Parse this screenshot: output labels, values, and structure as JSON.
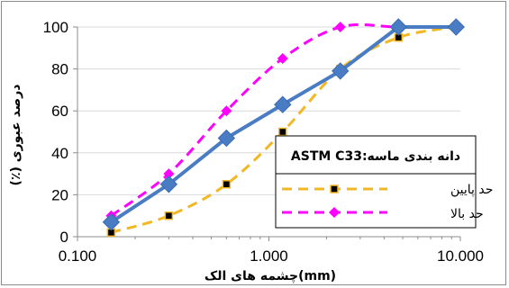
{
  "chart_data": {
    "type": "line",
    "x_scale": "log",
    "xlim": [
      0.1,
      10
    ],
    "ylim": [
      0,
      100
    ],
    "x_ticks": [
      0.1,
      1,
      10
    ],
    "x_tick_labels": [
      "0.100",
      "1.000",
      "10.000"
    ],
    "y_ticks": [
      0,
      20,
      40,
      60,
      80,
      100
    ],
    "y_tick_labels": [
      "0",
      "20",
      "40",
      "60",
      "80",
      "100"
    ],
    "xlabel": "چشمه های الک(mm)",
    "ylabel": "درصد عبوری (٪)",
    "callout": "دانه بندی ماسه:ASTM C33",
    "grid": "horizontal",
    "legend_position": "bottom-right",
    "series": [
      {
        "name": "حد پایین",
        "style": "dashed",
        "marker": "square",
        "color": "#f2b824",
        "x": [
          0.15,
          0.3,
          0.6,
          1.18,
          2.36,
          4.75,
          9.5
        ],
        "y": [
          2,
          10,
          25,
          50,
          80,
          95,
          100
        ]
      },
      {
        "name": "حد بالا",
        "style": "dashed",
        "marker": "diamond",
        "color": "#ff00ff",
        "x": [
          0.15,
          0.3,
          0.6,
          1.18,
          2.36,
          4.75,
          9.5
        ],
        "y": [
          10,
          30,
          60,
          85,
          100,
          100,
          100
        ]
      },
      {
        "style": "solid",
        "marker": "diamond",
        "color": "#4a7cc4",
        "x": [
          0.15,
          0.3,
          0.6,
          1.18,
          2.36,
          4.75,
          9.5
        ],
        "y": [
          7,
          25,
          47,
          63,
          79,
          100,
          100
        ]
      }
    ]
  }
}
